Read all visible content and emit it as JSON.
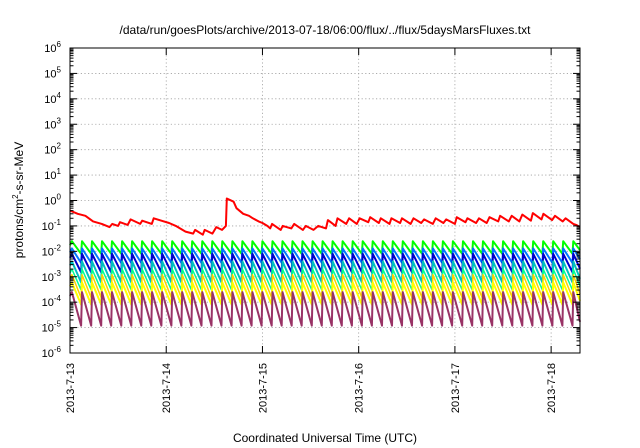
{
  "chart_data": {
    "type": "line",
    "title": "/data/run/goesPlots/archive/2013-07-18/06:00/flux/../flux/5daysMarsFluxes.txt",
    "xlabel": "Coordinated Universal Time (UTC)",
    "ylabel_parts": {
      "base": "protons/cm",
      "exp": "2",
      "rest": "-s-sr-MeV"
    },
    "y_scale": "log",
    "ylim_exp": [
      -6,
      6
    ],
    "xlim": [
      0,
      5.3
    ],
    "grid": true,
    "y_ticks": [
      {
        "base": "10",
        "exp": "-6",
        "value": -6
      },
      {
        "base": "10",
        "exp": "-5",
        "value": -5
      },
      {
        "base": "10",
        "exp": "-4",
        "value": -4
      },
      {
        "base": "10",
        "exp": "-3",
        "value": -3
      },
      {
        "base": "10",
        "exp": "-2",
        "value": -2
      },
      {
        "base": "10",
        "exp": "-1",
        "value": -1
      },
      {
        "base": "10",
        "exp": "0",
        "value": 0
      },
      {
        "base": "10",
        "exp": "1",
        "value": 1
      },
      {
        "base": "10",
        "exp": "2",
        "value": 2
      },
      {
        "base": "10",
        "exp": "3",
        "value": 3
      },
      {
        "base": "10",
        "exp": "4",
        "value": 4
      },
      {
        "base": "10",
        "exp": "5",
        "value": 5
      },
      {
        "base": "10",
        "exp": "6",
        "value": 6
      }
    ],
    "x_ticks": [
      {
        "label": "2013-7-13",
        "value": 0
      },
      {
        "label": "2013-7-14",
        "value": 1
      },
      {
        "label": "2013-7-15",
        "value": 2
      },
      {
        "label": "2013-7-16",
        "value": 3
      },
      {
        "label": "2013-7-17",
        "value": 4
      },
      {
        "label": "2013-7-18",
        "value": 5
      }
    ],
    "sawtooth": {
      "period_days": 0.1042,
      "phase_days": 0.02,
      "count": 51
    },
    "series": [
      {
        "color": "#ff0000",
        "width": 2.0,
        "values": [
          [
            0.0,
            0.4
          ],
          [
            0.08,
            0.3
          ],
          [
            0.16,
            0.25
          ],
          [
            0.24,
            0.15
          ],
          [
            0.33,
            0.12
          ],
          [
            0.41,
            0.09
          ],
          [
            0.44,
            0.12
          ],
          [
            0.5,
            0.1
          ],
          [
            0.52,
            0.14
          ],
          [
            0.6,
            0.11
          ],
          [
            0.63,
            0.18
          ],
          [
            0.73,
            0.12
          ],
          [
            0.75,
            0.16
          ],
          [
            0.85,
            0.12
          ],
          [
            0.87,
            0.2
          ],
          [
            0.95,
            0.16
          ],
          [
            1.03,
            0.13
          ],
          [
            1.1,
            0.1
          ],
          [
            1.2,
            0.06
          ],
          [
            1.28,
            0.05
          ],
          [
            1.3,
            0.07
          ],
          [
            1.38,
            0.045
          ],
          [
            1.4,
            0.07
          ],
          [
            1.48,
            0.05
          ],
          [
            1.52,
            0.09
          ],
          [
            1.58,
            0.07
          ],
          [
            1.62,
            0.1
          ],
          [
            1.63,
            1.2
          ],
          [
            1.7,
            0.9
          ],
          [
            1.73,
            0.5
          ],
          [
            1.8,
            0.3
          ],
          [
            1.86,
            0.25
          ],
          [
            1.9,
            0.2
          ],
          [
            1.96,
            0.15
          ],
          [
            2.0,
            0.13
          ],
          [
            2.05,
            0.1
          ],
          [
            2.08,
            0.08
          ],
          [
            2.1,
            0.12
          ],
          [
            2.19,
            0.07
          ],
          [
            2.21,
            0.1
          ],
          [
            2.3,
            0.08
          ],
          [
            2.33,
            0.12
          ],
          [
            2.42,
            0.07
          ],
          [
            2.45,
            0.1
          ],
          [
            2.53,
            0.07
          ],
          [
            2.58,
            0.1
          ],
          [
            2.66,
            0.08
          ],
          [
            2.68,
            0.17
          ],
          [
            2.76,
            0.1
          ],
          [
            2.78,
            0.2
          ],
          [
            2.87,
            0.12
          ],
          [
            2.9,
            0.2
          ],
          [
            2.98,
            0.12
          ],
          [
            3.01,
            0.2
          ],
          [
            3.1,
            0.14
          ],
          [
            3.12,
            0.22
          ],
          [
            3.21,
            0.13
          ],
          [
            3.23,
            0.2
          ],
          [
            3.32,
            0.12
          ],
          [
            3.34,
            0.2
          ],
          [
            3.43,
            0.13
          ],
          [
            3.45,
            0.2
          ],
          [
            3.54,
            0.12
          ],
          [
            3.57,
            0.2
          ],
          [
            3.65,
            0.13
          ],
          [
            3.68,
            0.18
          ],
          [
            3.77,
            0.12
          ],
          [
            3.8,
            0.2
          ],
          [
            3.88,
            0.13
          ],
          [
            3.91,
            0.18
          ],
          [
            4.0,
            0.12
          ],
          [
            4.02,
            0.22
          ],
          [
            4.11,
            0.14
          ],
          [
            4.13,
            0.2
          ],
          [
            4.22,
            0.13
          ],
          [
            4.25,
            0.2
          ],
          [
            4.33,
            0.13
          ],
          [
            4.36,
            0.22
          ],
          [
            4.45,
            0.15
          ],
          [
            4.47,
            0.25
          ],
          [
            4.56,
            0.15
          ],
          [
            4.59,
            0.25
          ],
          [
            4.67,
            0.15
          ],
          [
            4.7,
            0.28
          ],
          [
            4.79,
            0.16
          ],
          [
            4.81,
            0.32
          ],
          [
            4.9,
            0.18
          ],
          [
            4.92,
            0.3
          ],
          [
            5.01,
            0.17
          ],
          [
            5.04,
            0.25
          ],
          [
            5.12,
            0.15
          ],
          [
            5.15,
            0.2
          ],
          [
            5.23,
            0.12
          ],
          [
            5.26,
            0.11
          ],
          [
            5.3,
            0.09
          ]
        ]
      },
      {
        "color": "#00ff00",
        "width": 2.0,
        "peak": 0.025,
        "trough": 0.008
      },
      {
        "color": "#0077ff",
        "width": 2.0,
        "peak": 0.013,
        "trough": 0.0035
      },
      {
        "color": "#0000cc",
        "width": 2.0,
        "peak": 0.008,
        "trough": 0.0015
      },
      {
        "color": "#00c0c0",
        "width": 2.0,
        "peak": 0.004,
        "trough": 0.0006
      },
      {
        "color": "#00ff90",
        "width": 1.5,
        "peak": 0.002,
        "trough": 0.0003
      },
      {
        "color": "#ffd000",
        "width": 1.5,
        "peak": 0.0012,
        "trough": 0.00015
      },
      {
        "color": "#ffff00",
        "width": 2.0,
        "peak": 0.0006,
        "trough": 8e-05
      },
      {
        "color": "#993366",
        "width": 2.0,
        "peak": 0.00025,
        "trough": 1.2e-05
      }
    ]
  }
}
